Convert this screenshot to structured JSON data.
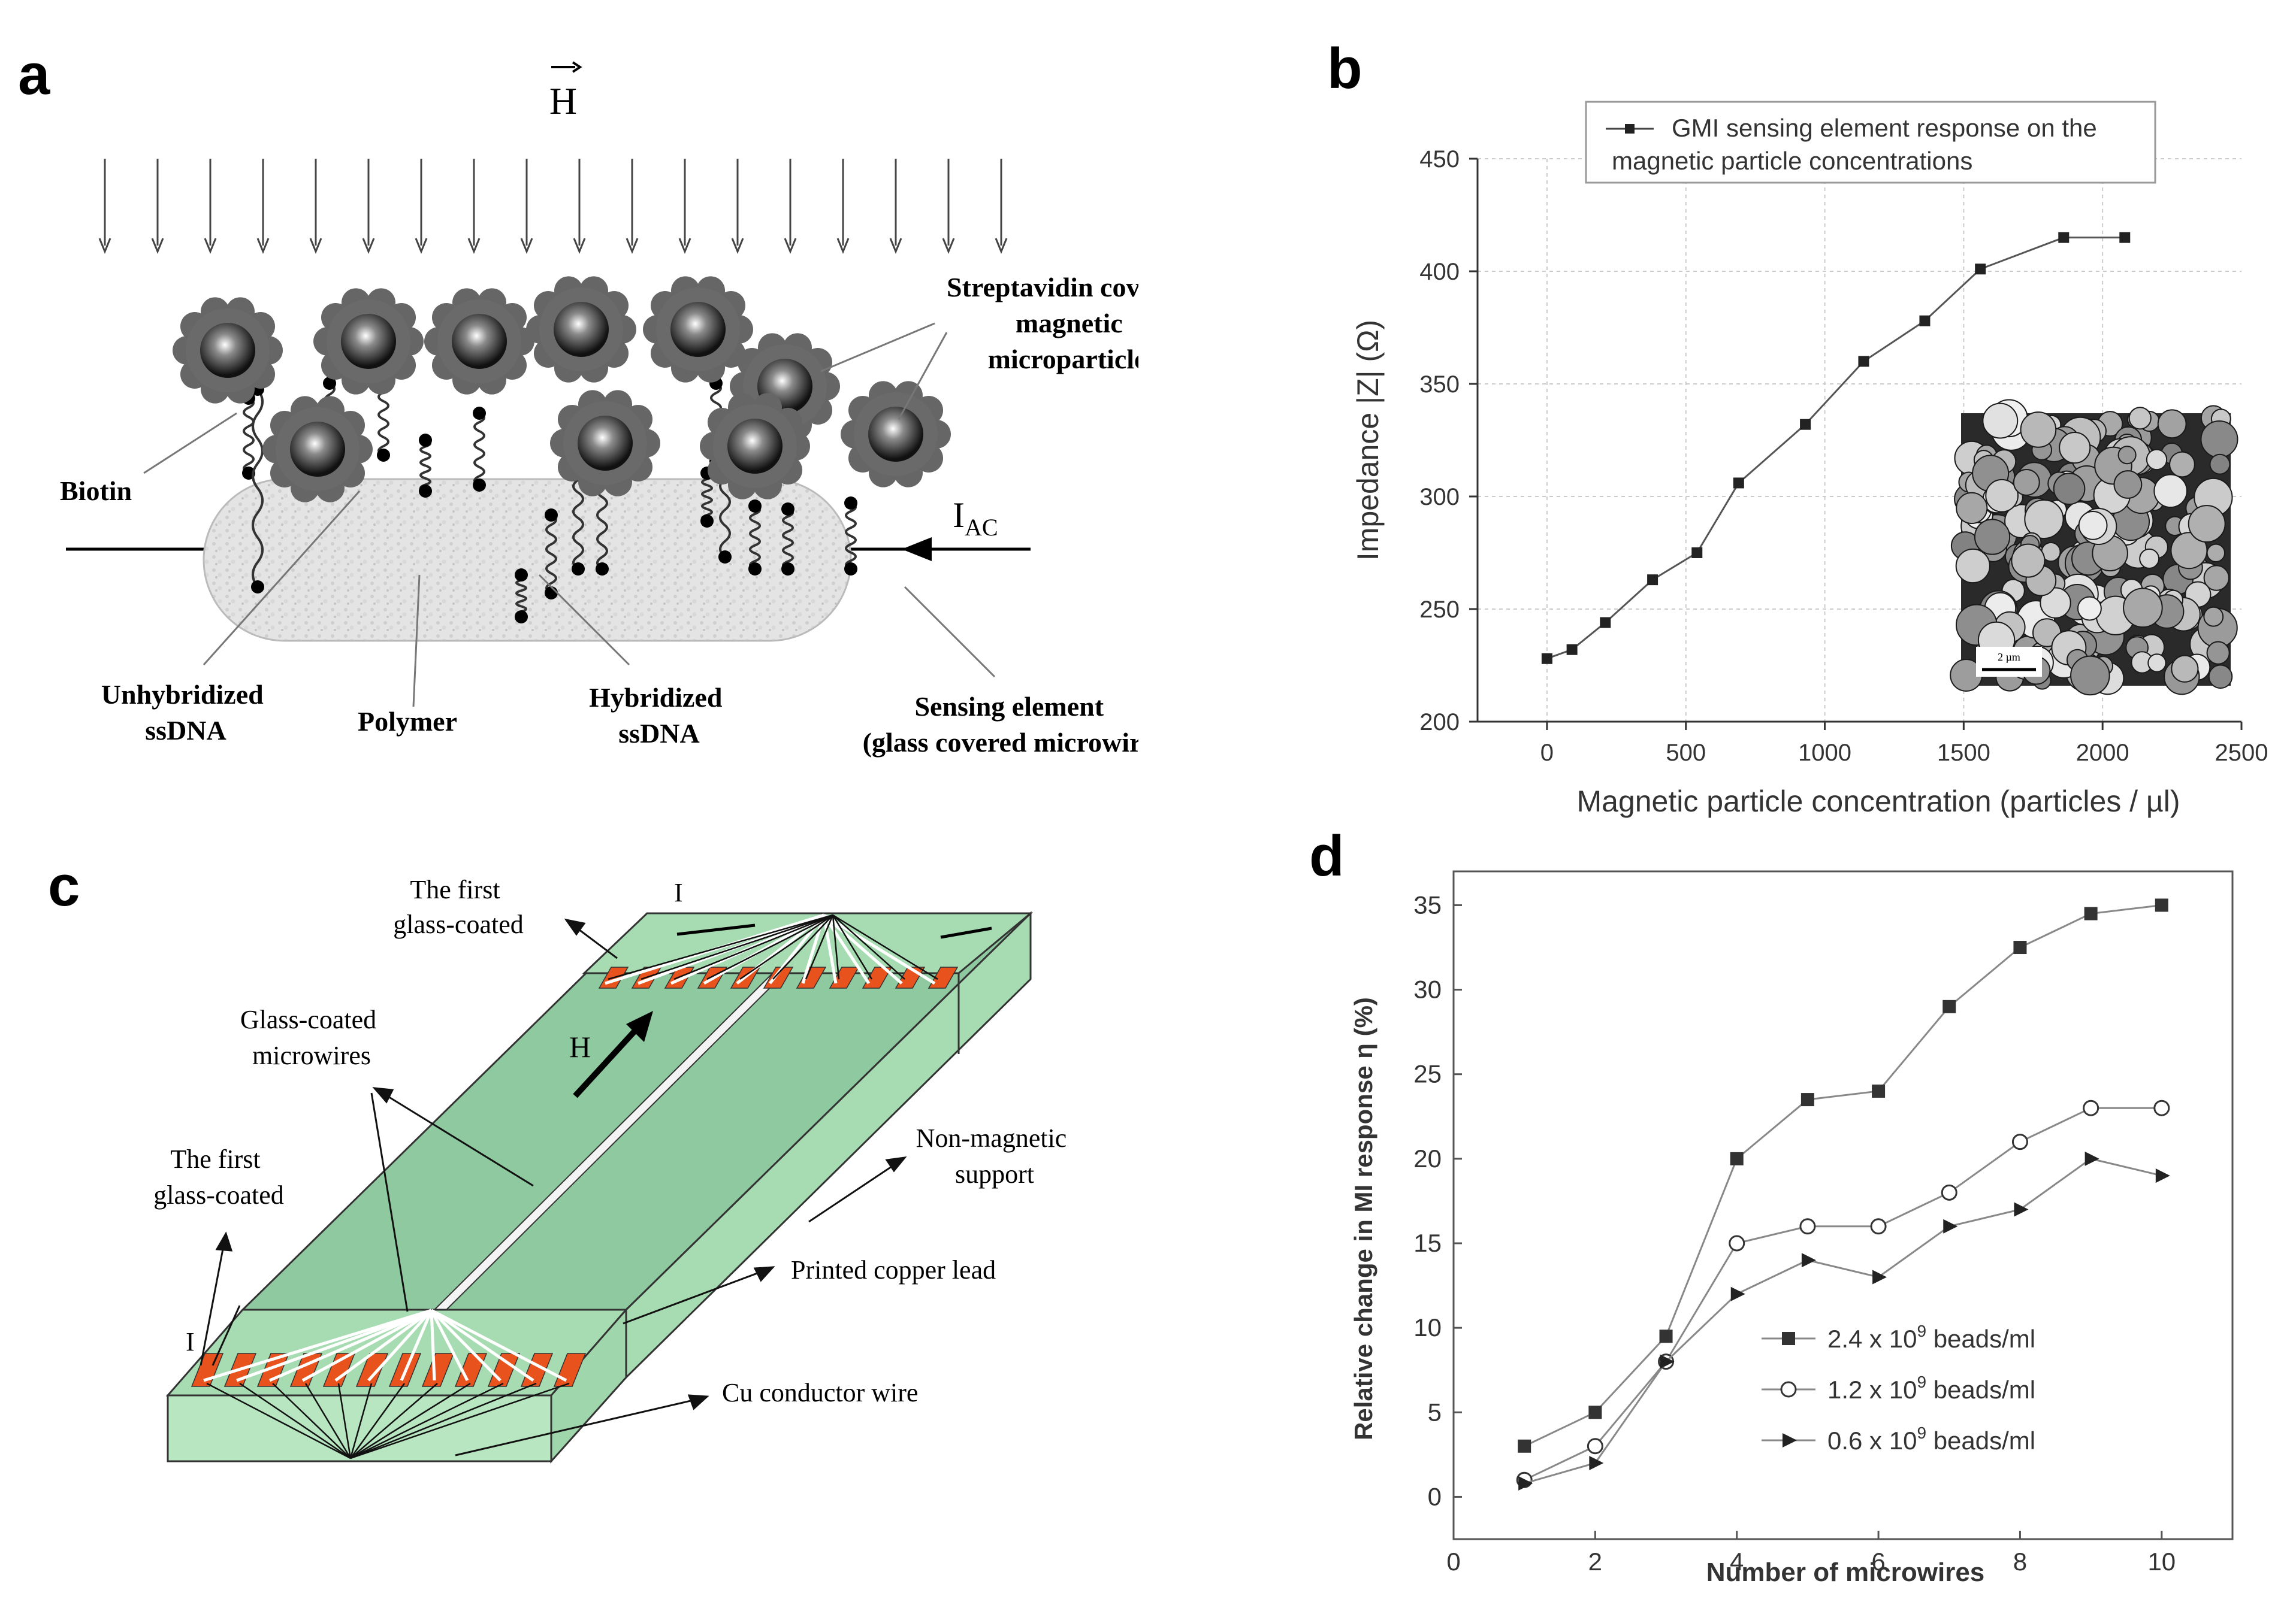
{
  "panel_a": {
    "label": "a",
    "field_symbol": "H",
    "labels": {
      "streptavidin": [
        "Streptavidin covered",
        "magnetic",
        "microparticles"
      ],
      "biotin": "Biotin",
      "iac_main": "I",
      "iac_sub": "AC",
      "unhybridized": [
        "Unhybridized",
        "ssDNA"
      ],
      "polymer": "Polymer",
      "hybridized": [
        "Hybridized",
        "ssDNA"
      ],
      "sensing": [
        "Sensing element",
        "(glass covered microwire)"
      ]
    }
  },
  "panel_b": {
    "label": "b",
    "legend": [
      "GMI sensing element response on the",
      "magnetic particle concentrations"
    ],
    "inset_scale": "2 µm",
    "chart_data": {
      "type": "line",
      "title": "",
      "xlabel": "Magnetic particle concentration (particles / µl)",
      "ylabel": "Impedance |Z| (Ω)",
      "xlim": [
        -250,
        2500
      ],
      "ylim": [
        200,
        450
      ],
      "xticks": [
        0,
        500,
        1000,
        1500,
        2000,
        2500
      ],
      "yticks": [
        200,
        250,
        300,
        350,
        400,
        450
      ],
      "series": [
        {
          "name": "GMI sensing element response on the magnetic particle concentrations",
          "x": [
            0,
            90,
            210,
            380,
            540,
            690,
            930,
            1140,
            1360,
            1560,
            1860,
            2080
          ],
          "y": [
            228,
            232,
            244,
            263,
            275,
            306,
            332,
            360,
            378,
            401,
            415,
            415
          ]
        }
      ]
    }
  },
  "panel_c": {
    "label": "c",
    "labels": {
      "first_top": [
        "The first",
        "glass-coated"
      ],
      "current_top": "I",
      "glass_coated": [
        "Glass-coated",
        "microwires"
      ],
      "field": "H",
      "first_left": [
        "The first",
        "glass-coated"
      ],
      "non_magnetic": [
        "Non-magnetic",
        "support"
      ],
      "copper_lead": "Printed copper lead",
      "current_bottom": "I",
      "cu_wire": "Cu conductor wire"
    }
  },
  "panel_d": {
    "label": "d",
    "chart_data": {
      "type": "line",
      "title": "",
      "xlabel": "Number of microwires",
      "ylabel": "Relative change in MI response η (%)",
      "xlim": [
        0,
        11
      ],
      "ylim": [
        -2.5,
        37
      ],
      "xticks": [
        0,
        2,
        4,
        6,
        8,
        10
      ],
      "yticks": [
        0,
        5,
        10,
        15,
        20,
        25,
        30,
        35
      ],
      "x": [
        1,
        2,
        3,
        4,
        5,
        6,
        7,
        8,
        9,
        10
      ],
      "series": [
        {
          "name": "2.4 x 10^9 beads/ml",
          "coef": "2.4 x 10",
          "exp": "9",
          "unit": " beads/ml",
          "marker": "square",
          "values": [
            3,
            5,
            9.5,
            20,
            23.5,
            24,
            29,
            32.5,
            34.5,
            35
          ]
        },
        {
          "name": "1.2 x 10^9 beads/ml",
          "coef": "1.2 x 10",
          "exp": "9",
          "unit": " beads/ml",
          "marker": "circle",
          "values": [
            1,
            3,
            8,
            15,
            16,
            16,
            18,
            21,
            23,
            23
          ]
        },
        {
          "name": "0.6 x 10^9 beads/ml",
          "coef": "0.6 x 10",
          "exp": "9",
          "unit": " beads/ml",
          "marker": "triangle",
          "values": [
            0.8,
            2,
            8,
            12,
            14,
            13,
            16,
            17,
            20,
            19
          ]
        }
      ]
    }
  }
}
